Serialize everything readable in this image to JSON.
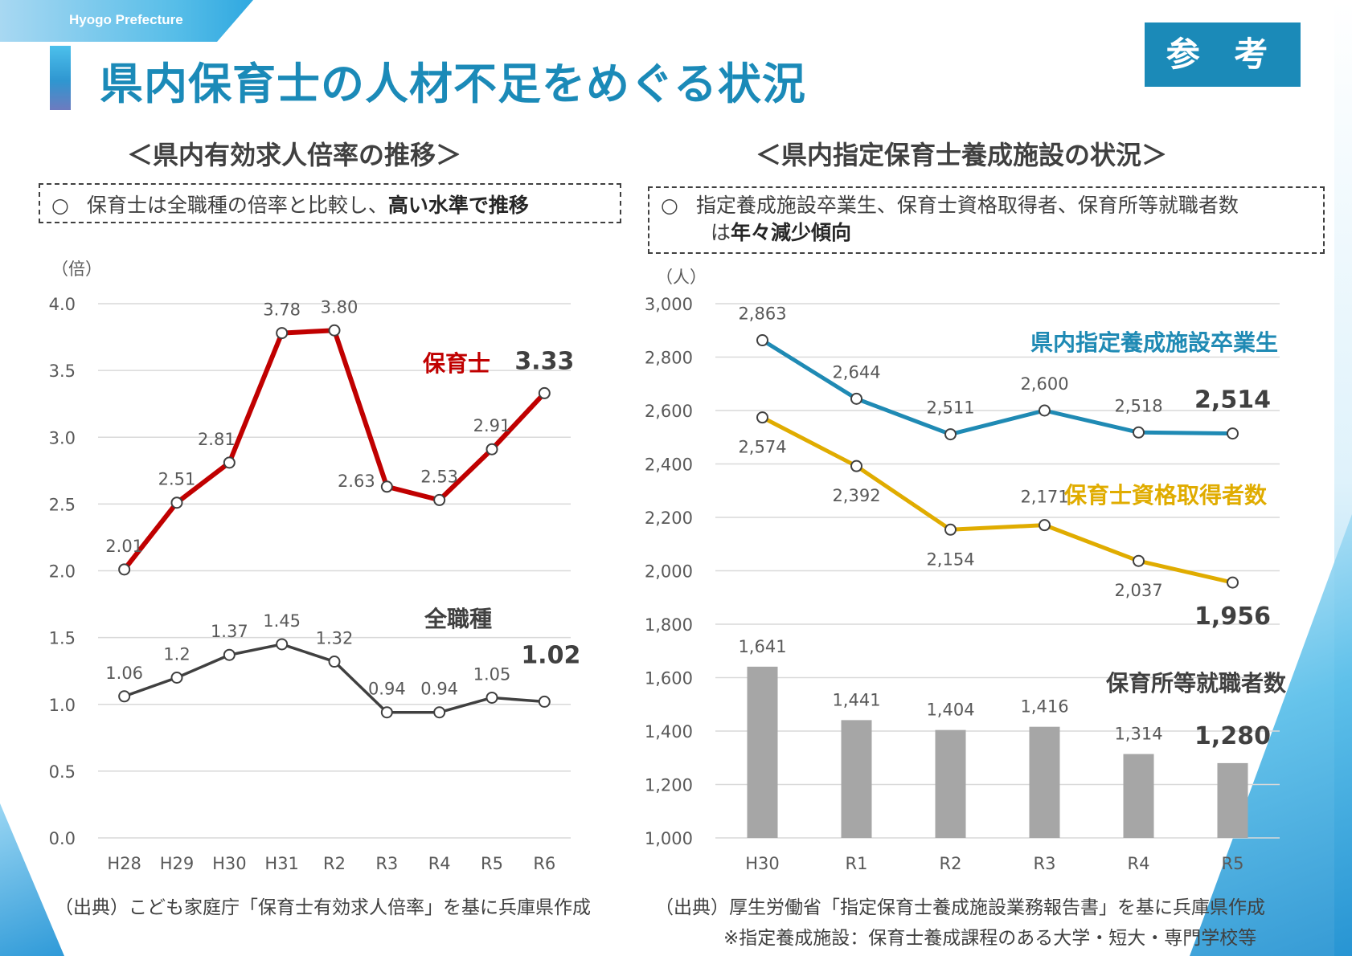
{
  "header": {
    "org_name": "Hyogo Prefecture",
    "title": "県内保育士の人材不足をめぐる状況",
    "badge": "参 考"
  },
  "left": {
    "section_title": "＜県内有効求人倍率の推移＞",
    "note_mark": "○",
    "note_text": "保育士は全職種の倍率と比較し、",
    "note_bold": "高い水準で推移",
    "source": "（出典）こども家庭庁「保育士有効求人倍率」を基に兵庫県作成"
  },
  "right": {
    "section_title": "＜県内指定保育士養成施設の状況＞",
    "note_mark": "○",
    "note_line1": "指定養成施設卒業生、保育士資格取得者、保育所等就職者数",
    "note_line2_prefix": "は",
    "note_bold": "年々減少傾向",
    "source": "（出典）厚生労働省「指定保育士養成施設業務報告書」を基に兵庫県作成",
    "footnote": "※指定養成施設：保育士養成課程のある大学・短大・専門学校等"
  },
  "colors": {
    "hoikushi": "#c00000",
    "all_jobs": "#404040",
    "graduates": "#1f8ab4",
    "qualified": "#e0ac00",
    "employed": "#a6a6a6",
    "grid": "#d9d9d9",
    "accent": "#1b8ab8"
  },
  "chart_data": [
    {
      "type": "line",
      "ylabel": "（倍）",
      "ylim": [
        0,
        4
      ],
      "yticks": [
        "0.0",
        "0.5",
        "1.0",
        "1.5",
        "2.0",
        "2.5",
        "3.0",
        "3.5",
        "4.0"
      ],
      "categories": [
        "H28",
        "H29",
        "H30",
        "H31",
        "R2",
        "R3",
        "R4",
        "R5",
        "R6"
      ],
      "grid": true,
      "series": [
        {
          "name": "保育士",
          "values": [
            2.01,
            2.51,
            2.81,
            3.78,
            3.8,
            2.63,
            2.53,
            2.91,
            3.33
          ],
          "labels": [
            "2.01",
            "2.51",
            "2.81",
            "3.78",
            "3.80",
            "2.63",
            "2.53",
            "2.91",
            "3.33"
          ]
        },
        {
          "name": "全職種",
          "values": [
            1.06,
            1.2,
            1.37,
            1.45,
            1.32,
            0.94,
            0.94,
            1.05,
            1.02
          ],
          "labels": [
            "1.06",
            "1.2",
            "1.37",
            "1.45",
            "1.32",
            "0.94",
            "0.94",
            "1.05",
            "1.02"
          ]
        }
      ]
    },
    {
      "type": "line",
      "ylabel": "（人）",
      "ylim": [
        1000,
        3000
      ],
      "yticks": [
        "1,000",
        "1,200",
        "1,400",
        "1,600",
        "1,800",
        "2,000",
        "2,200",
        "2,400",
        "2,600",
        "2,800",
        "3,000"
      ],
      "categories": [
        "H30",
        "R1",
        "R2",
        "R3",
        "R4",
        "R5"
      ],
      "grid": true,
      "series": [
        {
          "name": "県内指定養成施設卒業生",
          "kind": "line",
          "values": [
            2863,
            2644,
            2511,
            2600,
            2518,
            2514
          ],
          "labels": [
            "2,863",
            "2,644",
            "2,511",
            "2,600",
            "2,518",
            "2,514"
          ]
        },
        {
          "name": "保育士資格取得者数",
          "kind": "line",
          "values": [
            2574,
            2392,
            2154,
            2171,
            2037,
            1956
          ],
          "labels": [
            "2,574",
            "2,392",
            "2,154",
            "2,171",
            "2,037",
            "1,956"
          ]
        },
        {
          "name": "保育所等就職者数",
          "kind": "bar",
          "values": [
            1641,
            1441,
            1404,
            1416,
            1314,
            1280
          ],
          "labels": [
            "1,641",
            "1,441",
            "1,404",
            "1,416",
            "1,314",
            "1,280"
          ]
        }
      ]
    }
  ]
}
